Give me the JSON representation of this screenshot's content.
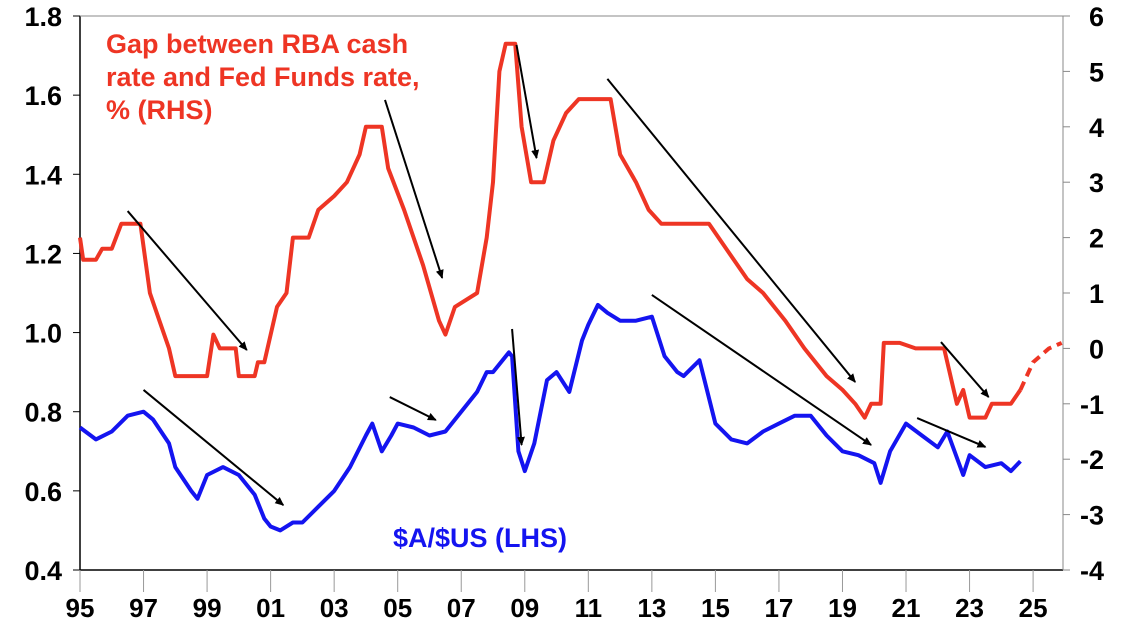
{
  "chart_data": {
    "type": "line",
    "title": "",
    "xlabel": "",
    "xlim": [
      1995,
      2025.95
    ],
    "x_ticks": [
      "95",
      "97",
      "99",
      "01",
      "03",
      "05",
      "07",
      "09",
      "11",
      "13",
      "15",
      "17",
      "19",
      "21",
      "23",
      "25"
    ],
    "y_left": {
      "label": "",
      "lim": [
        0.4,
        1.8
      ],
      "ticks": [
        "0.4",
        "0.6",
        "0.8",
        "1.0",
        "1.2",
        "1.4",
        "1.6",
        "1.8"
      ]
    },
    "y_right": {
      "label": "",
      "lim": [
        -4,
        6
      ],
      "ticks": [
        "-4",
        "-3",
        "-2",
        "-1",
        "0",
        "1",
        "2",
        "3",
        "4",
        "5",
        "6"
      ]
    },
    "grid": false,
    "annotations": {
      "red_label": [
        "Gap between RBA cash",
        "rate and Fed Funds rate,",
        "% (RHS)"
      ],
      "blue_label": "$A/$US (LHS)"
    },
    "colors": {
      "gap": "#ee3524",
      "aud": "#1414f0",
      "arrow": "#000000"
    },
    "series": [
      {
        "name": "$A/$US (LHS)",
        "axis": "left",
        "x": [
          1995.0,
          1995.5,
          1996.0,
          1996.5,
          1997.0,
          1997.3,
          1997.8,
          1998.0,
          1998.5,
          1998.7,
          1999.0,
          1999.5,
          2000.0,
          2000.5,
          2000.8,
          2001.0,
          2001.3,
          2001.7,
          2002.0,
          2002.5,
          2003.0,
          2003.5,
          2004.0,
          2004.2,
          2004.5,
          2004.8,
          2005.0,
          2005.5,
          2006.0,
          2006.5,
          2007.0,
          2007.5,
          2007.8,
          2008.0,
          2008.5,
          2008.6,
          2008.8,
          2009.0,
          2009.3,
          2009.7,
          2010.0,
          2010.4,
          2010.8,
          2011.0,
          2011.3,
          2011.6,
          2012.0,
          2012.5,
          2013.0,
          2013.4,
          2013.8,
          2014.0,
          2014.5,
          2015.0,
          2015.5,
          2016.0,
          2016.5,
          2017.0,
          2017.5,
          2018.0,
          2018.5,
          2019.0,
          2019.5,
          2020.0,
          2020.2,
          2020.5,
          2021.0,
          2021.5,
          2022.0,
          2022.3,
          2022.8,
          2023.0,
          2023.5,
          2024.0,
          2024.3,
          2024.6
        ],
        "values": [
          0.76,
          0.73,
          0.75,
          0.79,
          0.8,
          0.78,
          0.72,
          0.66,
          0.6,
          0.58,
          0.64,
          0.66,
          0.64,
          0.59,
          0.53,
          0.51,
          0.5,
          0.52,
          0.52,
          0.56,
          0.6,
          0.66,
          0.74,
          0.77,
          0.7,
          0.74,
          0.77,
          0.76,
          0.74,
          0.75,
          0.8,
          0.85,
          0.9,
          0.9,
          0.95,
          0.94,
          0.7,
          0.65,
          0.72,
          0.88,
          0.9,
          0.85,
          0.98,
          1.02,
          1.07,
          1.05,
          1.03,
          1.03,
          1.04,
          0.94,
          0.9,
          0.89,
          0.93,
          0.77,
          0.73,
          0.72,
          0.75,
          0.77,
          0.79,
          0.79,
          0.74,
          0.7,
          0.69,
          0.67,
          0.62,
          0.7,
          0.77,
          0.74,
          0.71,
          0.75,
          0.64,
          0.69,
          0.66,
          0.67,
          0.65,
          0.675
        ]
      },
      {
        "name": "Gap between RBA cash rate and Fed Funds rate, % (RHS)",
        "axis": "right",
        "x": [
          1995.0,
          1995.1,
          1995.5,
          1995.7,
          1996.0,
          1996.3,
          1996.9,
          1997.2,
          1997.5,
          1997.8,
          1998.0,
          1998.8,
          1999.0,
          1999.2,
          1999.4,
          1999.9,
          2000.0,
          2000.5,
          2000.6,
          2000.8,
          2001.2,
          2001.5,
          2001.7,
          2002.2,
          2002.5,
          2003.0,
          2003.4,
          2003.8,
          2004.0,
          2004.5,
          2004.7,
          2005.2,
          2005.8,
          2006.3,
          2006.5,
          2006.8,
          2007.5,
          2007.8,
          2008.0,
          2008.2,
          2008.4,
          2008.7,
          2008.9,
          2009.2,
          2009.6,
          2009.9,
          2010.3,
          2010.7,
          2011.7,
          2012.0,
          2012.5,
          2012.9,
          2013.3,
          2014.8,
          2015.4,
          2016.0,
          2016.5,
          2017.2,
          2017.8,
          2018.5,
          2019.0,
          2019.4,
          2019.7,
          2019.9,
          2020.2,
          2020.3,
          2020.8,
          2021.3,
          2022.2,
          2022.4,
          2022.6,
          2022.8,
          2023.0,
          2023.5,
          2023.7,
          2024.3,
          2024.6
        ],
        "values": [
          2.0,
          1.6,
          1.6,
          1.8,
          1.8,
          2.25,
          2.25,
          1.0,
          0.5,
          0.0,
          -0.5,
          -0.5,
          -0.5,
          0.25,
          0.0,
          0.0,
          -0.5,
          -0.5,
          -0.25,
          -0.25,
          0.75,
          1.0,
          2.0,
          2.0,
          2.5,
          2.75,
          3.0,
          3.5,
          4.0,
          4.0,
          3.25,
          2.5,
          1.5,
          0.5,
          0.25,
          0.75,
          1.0,
          2.0,
          3.0,
          5.0,
          5.5,
          5.5,
          4.0,
          3.0,
          3.0,
          3.75,
          4.25,
          4.5,
          4.5,
          3.5,
          3.0,
          2.5,
          2.25,
          2.25,
          1.75,
          1.25,
          1.0,
          0.5,
          0.0,
          -0.5,
          -0.75,
          -1.0,
          -1.25,
          -1.0,
          -1.0,
          0.1,
          0.1,
          0.0,
          0.0,
          -0.5,
          -1.0,
          -0.75,
          -1.25,
          -1.25,
          -1.0,
          -1.0,
          -0.75
        ]
      },
      {
        "name": "Gap projection (RHS, dashed)",
        "axis": "right",
        "dashed": true,
        "x": [
          2024.6,
          2025.0,
          2025.5,
          2025.9
        ],
        "values": [
          -0.75,
          -0.25,
          0.0,
          0.1
        ]
      }
    ],
    "arrows_lhs_units": [
      [
        [
          1996.5,
          1.307
        ],
        [
          2000.25,
          0.956
        ]
      ],
      [
        [
          2004.6,
          1.588
        ],
        [
          2006.4,
          1.138
        ]
      ],
      [
        [
          2008.74,
          1.727
        ],
        [
          2009.37,
          1.441
        ]
      ],
      [
        [
          2011.6,
          1.641
        ],
        [
          2019.4,
          0.875
        ]
      ],
      [
        [
          2022.1,
          0.976
        ],
        [
          2023.6,
          0.837
        ]
      ],
      [
        [
          1997.0,
          0.855
        ],
        [
          2001.4,
          0.564
        ]
      ],
      [
        [
          2004.75,
          0.837
        ],
        [
          2006.2,
          0.779
        ]
      ],
      [
        [
          2008.6,
          1.009
        ],
        [
          2008.9,
          0.716
        ]
      ],
      [
        [
          2013.0,
          1.095
        ],
        [
          2019.9,
          0.716
        ]
      ],
      [
        [
          2021.35,
          0.784
        ],
        [
          2023.5,
          0.711
        ]
      ]
    ]
  }
}
